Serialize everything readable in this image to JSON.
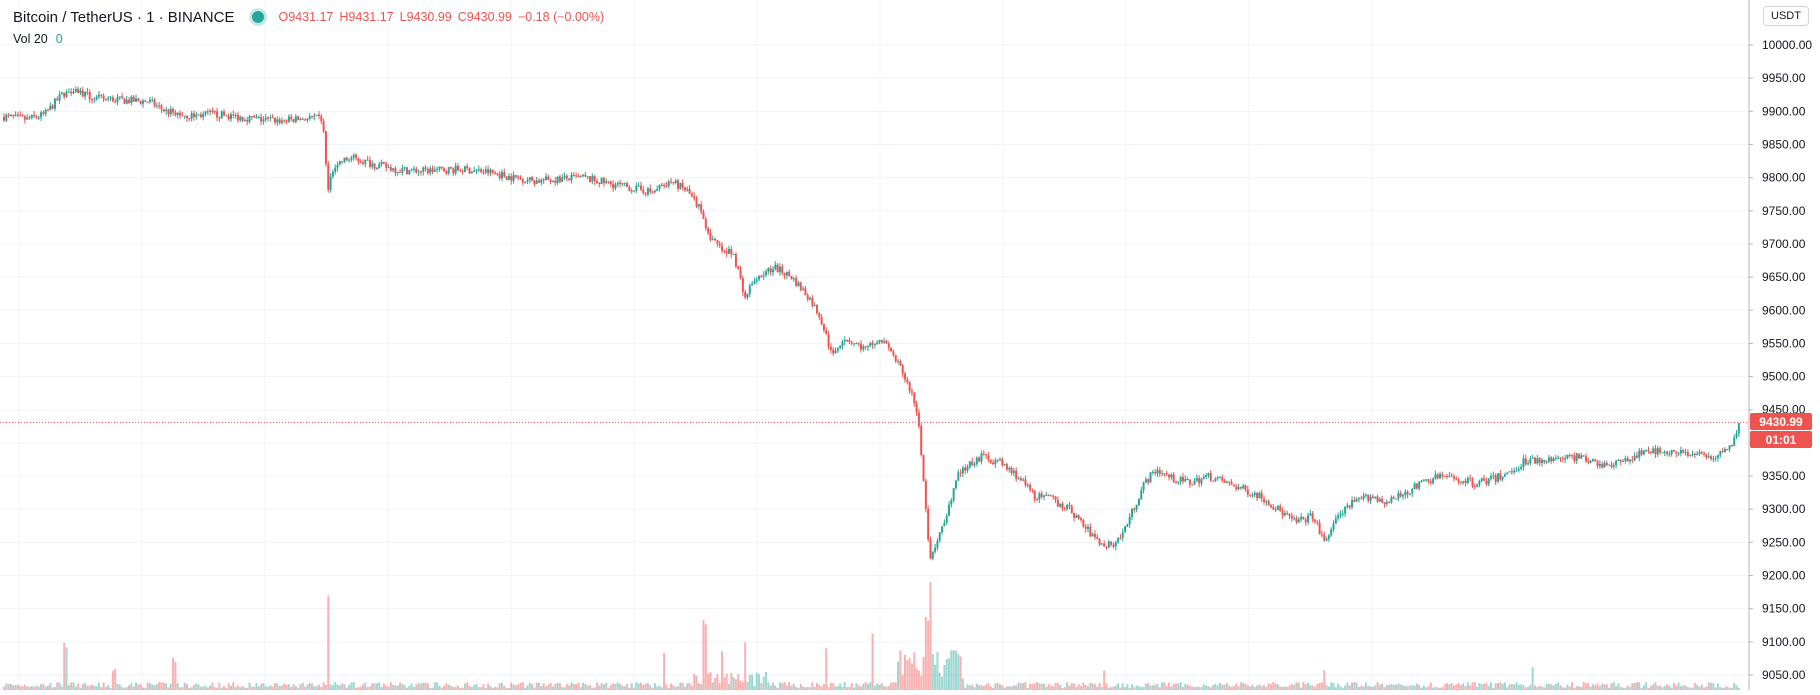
{
  "header": {
    "symbol": "Bitcoin / TetherUS · 1 · BINANCE",
    "open_label": "O",
    "open": "9431.17",
    "high_label": "H",
    "high": "9431.17",
    "low_label": "L",
    "low": "9430.99",
    "close_label": "C",
    "close": "9430.99",
    "change": "−0.18 (−0.00%)",
    "volume_label": "Vol 20",
    "volume_value": "0",
    "currency": "USDT",
    "last_price": "9430.99",
    "countdown": "01:01"
  },
  "colors": {
    "up": "#26a69a",
    "down": "#ef5350",
    "grid": "#f0f3fa",
    "axis_text": "#131722"
  },
  "chart_data": {
    "type": "candlestick",
    "title": "Bitcoin / TetherUS · 1 · BINANCE",
    "xlabel": "",
    "ylabel": "",
    "ylim": [
      9040,
      10040
    ],
    "grid": true,
    "y_ticks": [
      "10000.00",
      "9950.00",
      "9900.00",
      "9850.00",
      "9800.00",
      "9750.00",
      "9700.00",
      "9650.00",
      "9600.00",
      "9550.00",
      "9500.00",
      "9450.00",
      "9400.00",
      "9350.00",
      "9300.00",
      "9250.00",
      "9200.00",
      "9150.00",
      "9100.00",
      "9050.00"
    ],
    "last_price": 9430.99,
    "price_path_points": [
      [
        0,
        9892
      ],
      [
        20,
        9888
      ],
      [
        35,
        9895
      ],
      [
        50,
        9925
      ],
      [
        60,
        9935
      ],
      [
        75,
        9920
      ],
      [
        90,
        9918
      ],
      [
        110,
        9916
      ],
      [
        125,
        9915
      ],
      [
        140,
        9900
      ],
      [
        160,
        9893
      ],
      [
        180,
        9896
      ],
      [
        200,
        9892
      ],
      [
        220,
        9888
      ],
      [
        240,
        9886
      ],
      [
        265,
        9890
      ],
      [
        275,
        9888
      ],
      [
        277,
        9845
      ],
      [
        280,
        9780
      ],
      [
        285,
        9820
      ],
      [
        300,
        9830
      ],
      [
        320,
        9820
      ],
      [
        340,
        9812
      ],
      [
        360,
        9810
      ],
      [
        380,
        9812
      ],
      [
        400,
        9812
      ],
      [
        420,
        9808
      ],
      [
        440,
        9800
      ],
      [
        460,
        9795
      ],
      [
        480,
        9798
      ],
      [
        500,
        9800
      ],
      [
        520,
        9792
      ],
      [
        540,
        9785
      ],
      [
        560,
        9778
      ],
      [
        575,
        9795
      ],
      [
        590,
        9780
      ],
      [
        600,
        9755
      ],
      [
        610,
        9710
      ],
      [
        620,
        9690
      ],
      [
        630,
        9685
      ],
      [
        640,
        9620
      ],
      [
        650,
        9650
      ],
      [
        665,
        9665
      ],
      [
        680,
        9650
      ],
      [
        695,
        9620
      ],
      [
        705,
        9590
      ],
      [
        715,
        9530
      ],
      [
        725,
        9560
      ],
      [
        735,
        9550
      ],
      [
        745,
        9540
      ],
      [
        755,
        9560
      ],
      [
        765,
        9540
      ],
      [
        775,
        9510
      ],
      [
        785,
        9470
      ],
      [
        790,
        9430
      ],
      [
        795,
        9320
      ],
      [
        798,
        9250
      ],
      [
        800,
        9220
      ],
      [
        805,
        9250
      ],
      [
        815,
        9300
      ],
      [
        825,
        9355
      ],
      [
        835,
        9370
      ],
      [
        845,
        9380
      ],
      [
        860,
        9370
      ],
      [
        875,
        9350
      ],
      [
        890,
        9320
      ],
      [
        905,
        9315
      ],
      [
        920,
        9300
      ],
      [
        935,
        9270
      ],
      [
        945,
        9250
      ],
      [
        955,
        9245
      ],
      [
        965,
        9260
      ],
      [
        975,
        9300
      ],
      [
        985,
        9340
      ],
      [
        995,
        9360
      ],
      [
        1010,
        9345
      ],
      [
        1025,
        9340
      ],
      [
        1040,
        9350
      ],
      [
        1055,
        9340
      ],
      [
        1070,
        9330
      ],
      [
        1085,
        9320
      ],
      [
        1100,
        9300
      ],
      [
        1115,
        9280
      ],
      [
        1130,
        9290
      ],
      [
        1140,
        9250
      ],
      [
        1150,
        9285
      ],
      [
        1165,
        9310
      ],
      [
        1180,
        9320
      ],
      [
        1195,
        9310
      ],
      [
        1210,
        9325
      ],
      [
        1225,
        9340
      ],
      [
        1240,
        9350
      ],
      [
        1255,
        9345
      ],
      [
        1270,
        9340
      ],
      [
        1285,
        9345
      ],
      [
        1300,
        9355
      ],
      [
        1315,
        9375
      ],
      [
        1330,
        9370
      ],
      [
        1345,
        9380
      ],
      [
        1360,
        9378
      ],
      [
        1375,
        9370
      ],
      [
        1390,
        9365
      ],
      [
        1400,
        9375
      ],
      [
        1415,
        9385
      ],
      [
        1430,
        9390
      ],
      [
        1445,
        9385
      ],
      [
        1460,
        9382
      ],
      [
        1475,
        9378
      ],
      [
        1490,
        9392
      ],
      [
        1499,
        9431
      ]
    ],
    "volume_spike_points": [
      [
        53,
        45
      ],
      [
        95,
        20
      ],
      [
        147,
        30
      ],
      [
        280,
        90
      ],
      [
        570,
        35
      ],
      [
        605,
        65
      ],
      [
        620,
        40
      ],
      [
        640,
        45
      ],
      [
        710,
        45
      ],
      [
        750,
        55
      ],
      [
        797,
        75
      ],
      [
        800,
        100
      ],
      [
        820,
        40
      ],
      [
        950,
        20
      ],
      [
        1140,
        20
      ],
      [
        1320,
        25
      ],
      [
        1500,
        20
      ]
    ]
  }
}
